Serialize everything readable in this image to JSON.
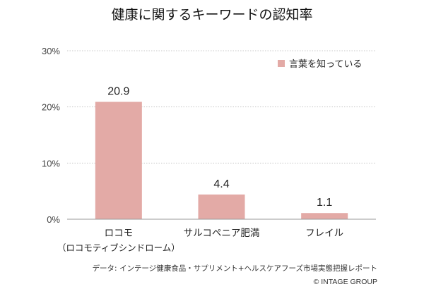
{
  "chart_data": {
    "type": "bar",
    "title": "健康に関するキーワードの認知率",
    "categories": [
      "ロコモ",
      "サルコペニア肥満",
      "フレイル"
    ],
    "category_sublabels": [
      "（ロコモティブシンドローム）",
      "",
      ""
    ],
    "series": [
      {
        "name": "言葉を知っている",
        "values": [
          20.9,
          4.4,
          1.1
        ],
        "color": "#e3aaa6"
      }
    ],
    "data_labels": [
      "20.9",
      "4.4",
      "1.1"
    ],
    "ylim": [
      0,
      30
    ],
    "yticks": [
      0,
      10,
      20,
      30
    ],
    "ytick_labels": [
      "0%",
      "10%",
      "20%",
      "30%"
    ],
    "xlabel": "",
    "ylabel": "",
    "grid": true,
    "legend_position": "top-right"
  },
  "source_note": "データ:  インテージ健康食品・サプリメント+ヘルスケアフーズ市場実態把握レポート",
  "copyright": "© INTAGE GROUP",
  "colors": {
    "bar": "#e3aaa6",
    "grid": "#c8c8c8",
    "axis": "#999999"
  }
}
